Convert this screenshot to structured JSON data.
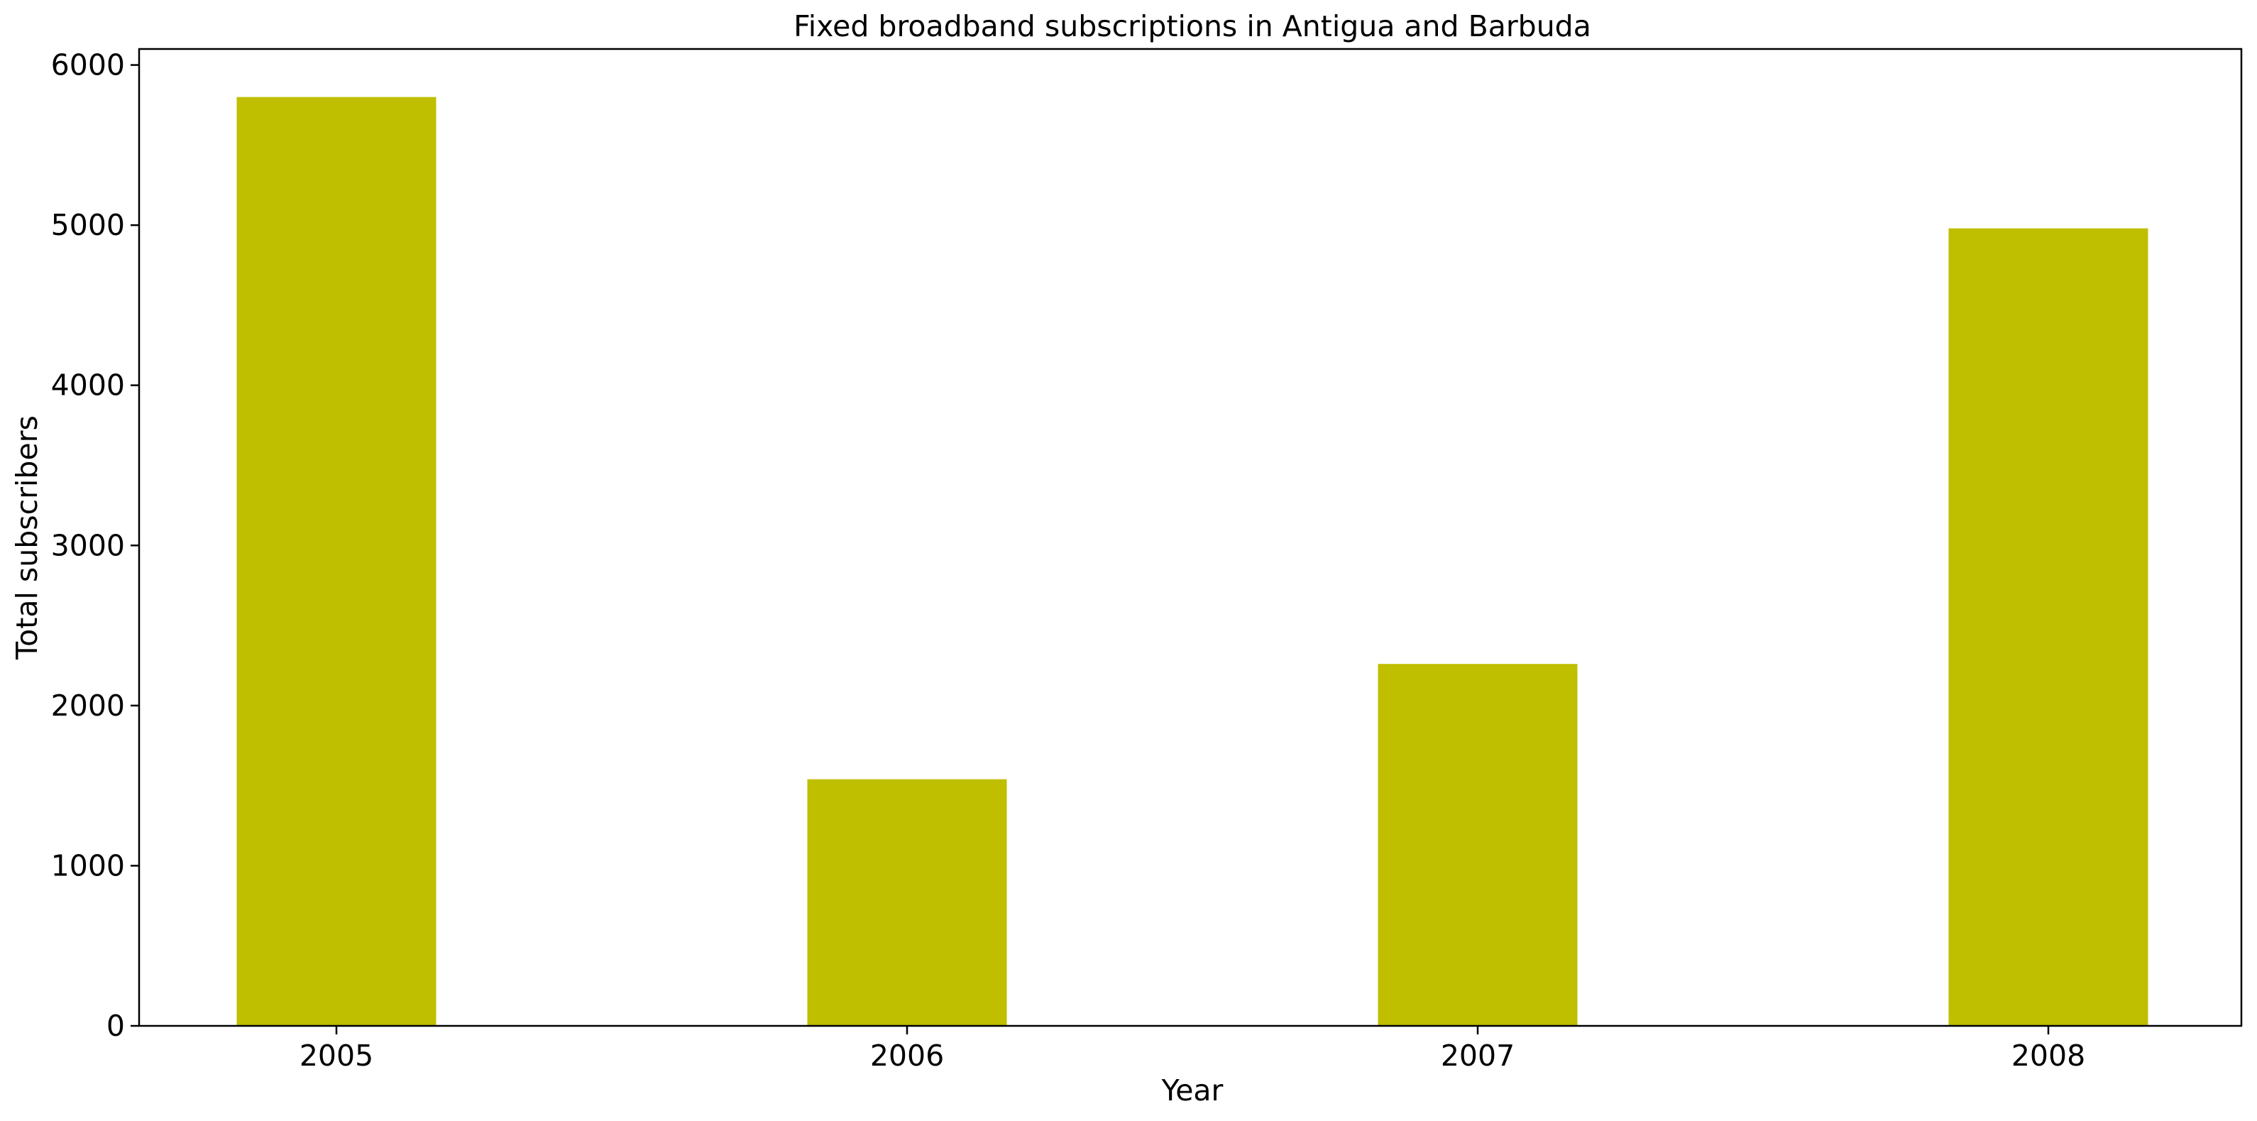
{
  "chart_data": {
    "type": "bar",
    "title": "Fixed broadband subscriptions in Antigua and Barbuda",
    "xlabel": "Year",
    "ylabel": "Total subscribers",
    "categories": [
      "2005",
      "2006",
      "2007",
      "2008"
    ],
    "values": [
      5800,
      1540,
      2260,
      4980
    ],
    "ylim": [
      0,
      6100
    ],
    "yticks": [
      0,
      1000,
      2000,
      3000,
      4000,
      5000,
      6000
    ],
    "bar_color": "#bfbf00",
    "grid": false,
    "legend": "none"
  }
}
